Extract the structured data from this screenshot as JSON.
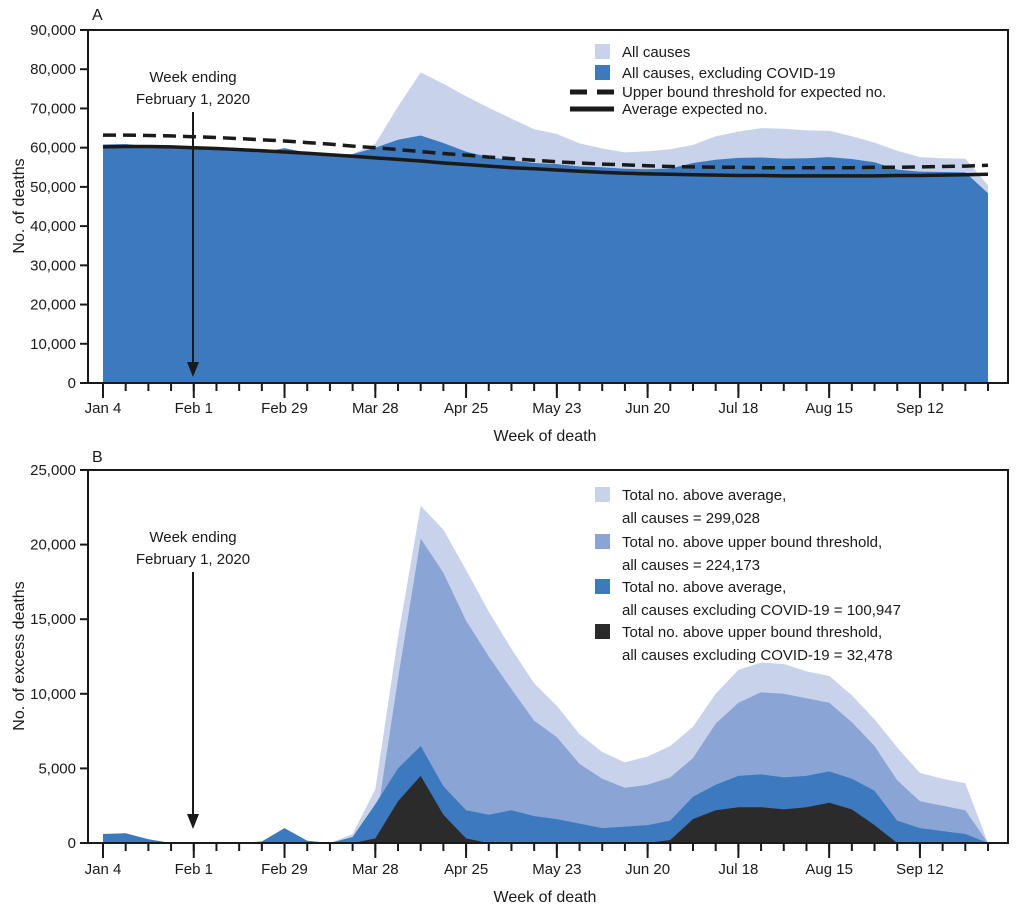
{
  "figure": {
    "description": "Two-panel weekly mortality chart, United States, weeks ending Jan 4 - Oct 3, 2020",
    "annotation_colors": {
      "text": "#1a1a1a",
      "line": "#1a1a1a"
    },
    "palette": {
      "light_blue": "#c8d3eb",
      "medium_blue": "#8aa4d5",
      "dark_blue": "#3d79bf",
      "near_black": "#2b2b2b",
      "axis_black": "#1a1a1a"
    }
  },
  "chart_data": [
    {
      "type": "area",
      "panel_label": "A",
      "xlabel": "Week of death",
      "ylabel": "No. of deaths",
      "ylim": [
        0,
        90000
      ],
      "ytick_interval": 10000,
      "grid": false,
      "legend_position": "top-right-inside",
      "y_tick_labels": [
        "0",
        "10,000",
        "20,000",
        "30,000",
        "40,000",
        "50,000",
        "60,000",
        "70,000",
        "80,000",
        "90,000"
      ],
      "x_tick_labels": [
        "Jan 4",
        "Feb 1",
        "Feb 29",
        "Mar 28",
        "Apr 25",
        "May 23",
        "Jun 20",
        "Jul 18",
        "Aug 15",
        "Sep 12"
      ],
      "annotation": {
        "line1": "Week ending",
        "line2": "February 1, 2020",
        "points_to_week": "Feb 1"
      },
      "weeks": [
        "Jan 4",
        "Jan 11",
        "Jan 18",
        "Jan 25",
        "Feb 1",
        "Feb 8",
        "Feb 15",
        "Feb 22",
        "Feb 29",
        "Mar 7",
        "Mar 14",
        "Mar 21",
        "Mar 28",
        "Apr 4",
        "Apr 11",
        "Apr 18",
        "Apr 25",
        "May 2",
        "May 9",
        "May 16",
        "May 23",
        "May 30",
        "Jun 6",
        "Jun 13",
        "Jun 20",
        "Jun 27",
        "Jul 4",
        "Jul 11",
        "Jul 18",
        "Jul 25",
        "Aug 1",
        "Aug 8",
        "Aug 15",
        "Aug 22",
        "Aug 29",
        "Sep 5",
        "Sep 12",
        "Sep 19",
        "Sep 26",
        "Oct 3"
      ],
      "series": [
        {
          "name": "All causes",
          "type": "area",
          "color": "#c8d3eb",
          "values": [
            60800,
            60900,
            60400,
            59900,
            59700,
            59400,
            59100,
            58800,
            59900,
            58700,
            58200,
            58400,
            61000,
            70500,
            79200,
            76300,
            73100,
            70200,
            67400,
            64700,
            63500,
            61100,
            59800,
            58800,
            59100,
            59600,
            60700,
            62900,
            64100,
            65000,
            64800,
            64400,
            64300,
            62900,
            61300,
            59200,
            57600,
            57300,
            57200,
            50400
          ]
        },
        {
          "name": "All causes, excluding COVID-19",
          "type": "area",
          "color": "#3d79bf",
          "values": [
            60800,
            60900,
            60400,
            59900,
            59700,
            59400,
            59100,
            58800,
            59900,
            58700,
            58200,
            58300,
            60000,
            62000,
            63100,
            61200,
            59000,
            57600,
            56800,
            56100,
            55800,
            55200,
            55000,
            54600,
            54500,
            54700,
            56100,
            56900,
            57400,
            57500,
            57200,
            57300,
            57600,
            57100,
            56300,
            54400,
            53900,
            53800,
            53700,
            48400
          ]
        },
        {
          "name": "Upper bound threshold for expected no.",
          "type": "line",
          "style": "dashed",
          "color": "#1a1a1a",
          "values": [
            63200,
            63200,
            63100,
            63000,
            62800,
            62600,
            62300,
            62000,
            61700,
            61300,
            60900,
            60400,
            60000,
            59500,
            59000,
            58500,
            58100,
            57600,
            57200,
            56800,
            56400,
            56100,
            55800,
            55600,
            55400,
            55200,
            55100,
            55000,
            55000,
            54900,
            54900,
            54900,
            54900,
            54900,
            55000,
            55000,
            55100,
            55200,
            55300,
            55500
          ]
        },
        {
          "name": "Average expected no.",
          "type": "line",
          "style": "solid",
          "color": "#1a1a1a",
          "values": [
            60200,
            60300,
            60300,
            60200,
            60000,
            59800,
            59500,
            59200,
            58900,
            58600,
            58200,
            57800,
            57400,
            57000,
            56600,
            56100,
            55700,
            55300,
            54900,
            54600,
            54300,
            54000,
            53700,
            53500,
            53300,
            53200,
            53100,
            53000,
            52900,
            52900,
            52800,
            52800,
            52800,
            52800,
            52800,
            52900,
            52900,
            53000,
            53100,
            53200
          ]
        }
      ]
    },
    {
      "type": "area",
      "panel_label": "B",
      "xlabel": "Week of death",
      "ylabel": "No. of excess deaths",
      "ylim": [
        0,
        25000
      ],
      "ytick_interval": 5000,
      "grid": false,
      "legend_position": "top-right-inside",
      "y_tick_labels": [
        "0",
        "5,000",
        "10,000",
        "15,000",
        "20,000",
        "25,000"
      ],
      "x_tick_labels": [
        "Jan 4",
        "Feb 1",
        "Feb 29",
        "Mar 28",
        "Apr 25",
        "May 23",
        "Jun 20",
        "Jul 18",
        "Aug 15",
        "Sep 12"
      ],
      "annotation": {
        "line1": "Week ending",
        "line2": "February 1, 2020",
        "points_to_week": "Feb 1"
      },
      "weeks": [
        "Jan 4",
        "Jan 11",
        "Jan 18",
        "Jan 25",
        "Feb 1",
        "Feb 8",
        "Feb 15",
        "Feb 22",
        "Feb 29",
        "Mar 7",
        "Mar 14",
        "Mar 21",
        "Mar 28",
        "Apr 4",
        "Apr 11",
        "Apr 18",
        "Apr 25",
        "May 2",
        "May 9",
        "May 16",
        "May 23",
        "May 30",
        "Jun 6",
        "Jun 13",
        "Jun 20",
        "Jun 27",
        "Jul 4",
        "Jul 11",
        "Jul 18",
        "Jul 25",
        "Aug 1",
        "Aug 8",
        "Aug 15",
        "Aug 22",
        "Aug 29",
        "Sep 5",
        "Sep 12",
        "Sep 19",
        "Sep 26",
        "Oct 3"
      ],
      "series": [
        {
          "name": "Total no. above average, all causes",
          "total": 299028,
          "type": "area",
          "color": "#c8d3eb",
          "legend": [
            "Total no. above average,",
            "all causes = 299,028"
          ],
          "values": [
            600,
            650,
            250,
            0,
            0,
            0,
            0,
            100,
            1000,
            150,
            0,
            600,
            3600,
            13800,
            22600,
            21000,
            18300,
            15500,
            13000,
            10700,
            9200,
            7300,
            6100,
            5400,
            5800,
            6500,
            7800,
            10000,
            11600,
            12100,
            12000,
            11500,
            11200,
            9900,
            8300,
            6400,
            4700,
            4300,
            4000,
            0
          ]
        },
        {
          "name": "Total no. above upper bound threshold, all causes",
          "total": 224173,
          "type": "area",
          "color": "#8aa4d5",
          "legend": [
            "Total no. above upper bound threshold,",
            "all causes = 224,173"
          ],
          "values": [
            0,
            0,
            0,
            0,
            0,
            0,
            0,
            0,
            0,
            0,
            0,
            0,
            1000,
            11000,
            20400,
            18100,
            14900,
            12500,
            10300,
            8200,
            7100,
            5300,
            4300,
            3700,
            3900,
            4400,
            5700,
            8000,
            9400,
            10100,
            10000,
            9700,
            9400,
            8100,
            6500,
            4200,
            2800,
            2500,
            2200,
            0
          ]
        },
        {
          "name": "Total no. above average, all causes excluding COVID-19",
          "total": 100947,
          "type": "area",
          "color": "#3d79bf",
          "legend": [
            "Total no. above average,",
            "all causes excluding COVID-19 = 100,947"
          ],
          "values": [
            600,
            650,
            250,
            0,
            0,
            0,
            0,
            100,
            1000,
            150,
            0,
            400,
            2600,
            5000,
            6500,
            3800,
            2200,
            1900,
            2200,
            1800,
            1600,
            1300,
            1000,
            1100,
            1200,
            1500,
            3100,
            3900,
            4500,
            4600,
            4400,
            4500,
            4800,
            4300,
            3500,
            1500,
            1000,
            800,
            600,
            0
          ]
        },
        {
          "name": "Total no. above upper bound threshold, all causes excluding COVID-19",
          "total": 32478,
          "type": "area",
          "color": "#2b2b2b",
          "legend": [
            "Total no. above upper bound threshold,",
            "all causes excluding COVID-19 = 32,478"
          ],
          "values": [
            0,
            0,
            0,
            0,
            0,
            0,
            0,
            0,
            0,
            0,
            0,
            0,
            300,
            2800,
            4500,
            1900,
            300,
            0,
            0,
            0,
            0,
            0,
            0,
            0,
            0,
            200,
            1600,
            2200,
            2400,
            2400,
            2250,
            2400,
            2700,
            2250,
            1200,
            0,
            0,
            0,
            0,
            0
          ]
        }
      ]
    }
  ]
}
